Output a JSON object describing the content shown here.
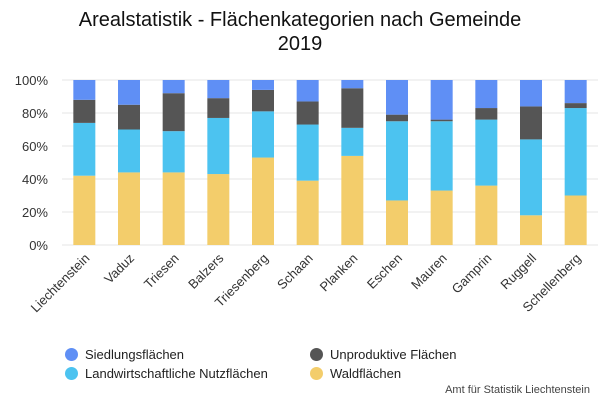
{
  "chart_data": {
    "type": "bar",
    "stacked": "percent",
    "title": "Arealstatistik - Flächenkategorien nach Gemeinde",
    "subtitle": "2019",
    "categories": [
      "Liechtenstein",
      "Vaduz",
      "Triesen",
      "Balzers",
      "Triesenberg",
      "Schaan",
      "Planken",
      "Eschen",
      "Mauren",
      "Gamprin",
      "Ruggell",
      "Schellenberg"
    ],
    "series": [
      {
        "name": "Waldflächen",
        "color": "#f3cd6b",
        "values": [
          42,
          44,
          44,
          43,
          53,
          39,
          54,
          27,
          33,
          36,
          18,
          30
        ]
      },
      {
        "name": "Landwirtschaftliche Nutzflächen",
        "color": "#4cc3f0",
        "values": [
          32,
          26,
          25,
          34,
          28,
          34,
          17,
          48,
          42,
          40,
          46,
          53
        ]
      },
      {
        "name": "Unproduktive Flächen",
        "color": "#555555",
        "values": [
          14,
          15,
          23,
          12,
          13,
          14,
          24,
          4,
          1,
          7,
          20,
          3
        ]
      },
      {
        "name": "Siedlungsflächen",
        "color": "#5f8ff5",
        "values": [
          12,
          15,
          8,
          11,
          6,
          13,
          5,
          21,
          24,
          17,
          16,
          14
        ]
      }
    ],
    "yticks": [
      "0%",
      "20%",
      "40%",
      "60%",
      "80%",
      "100%"
    ],
    "ylim": [
      0,
      100
    ],
    "grid": true,
    "legend_placement": "bottom",
    "legend_order": [
      "Siedlungsflächen",
      "Unproduktive Flächen",
      "Landwirtschaftliche Nutzflächen",
      "Waldflächen"
    ],
    "credit": "Amt für Statistik Liechtenstein"
  }
}
